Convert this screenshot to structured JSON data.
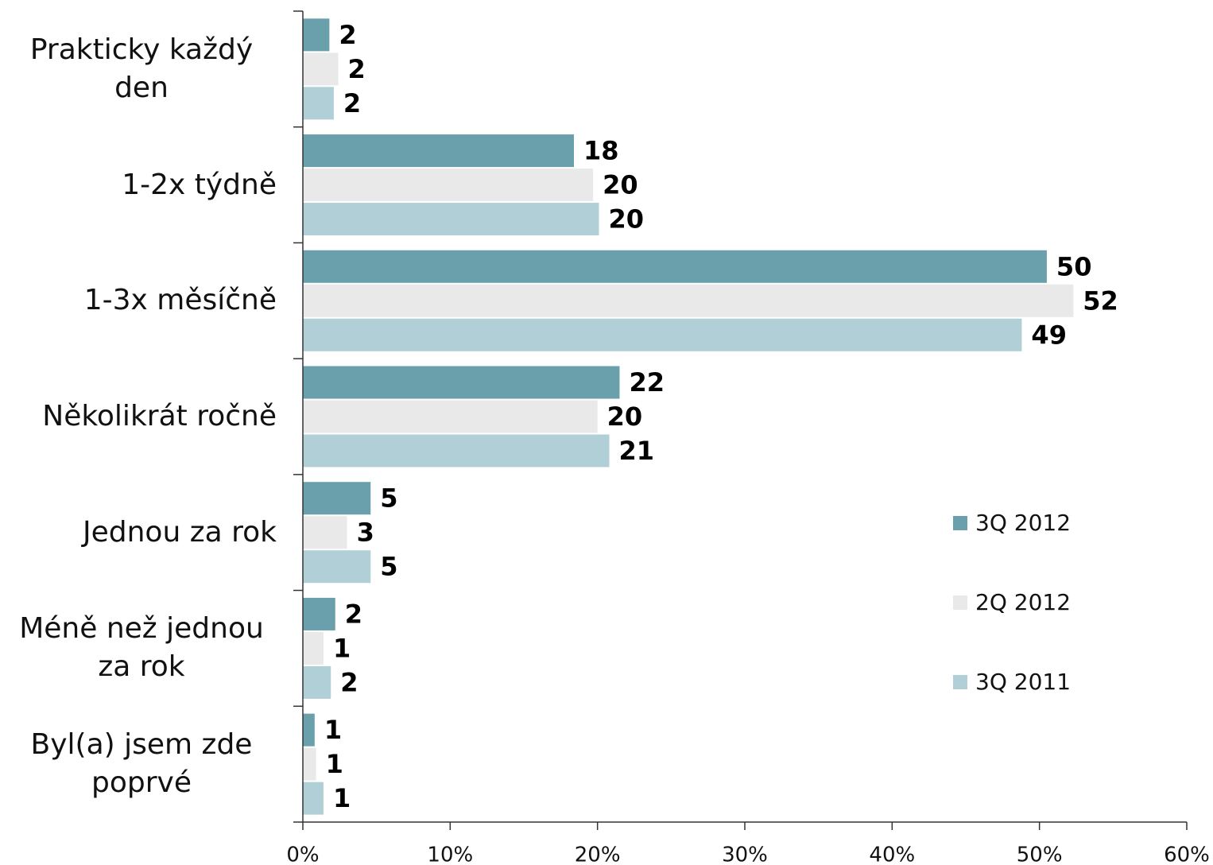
{
  "chart_data": {
    "type": "hbar",
    "categories": [
      "Prakticky každý den",
      "1-2x týdně",
      "1-3x měsíčně",
      "Několikrát ročně",
      "Jednou za rok",
      "Méně než jednou za rok",
      "Byl(a) jsem zde poprvé"
    ],
    "series": [
      {
        "name": "3Q 2012",
        "color": "#6a9fac",
        "values": [
          1.8,
          18.4,
          50.5,
          21.5,
          4.6,
          2.2,
          0.8
        ],
        "value_labels": [
          "2",
          "18",
          "50",
          "22",
          "5",
          "2",
          "1"
        ]
      },
      {
        "name": "2Q 2012",
        "color": "#e9e9e9",
        "values": [
          2.4,
          19.7,
          52.3,
          20.0,
          3.0,
          1.4,
          0.9
        ],
        "value_labels": [
          "2",
          "20",
          "52",
          "20",
          "3",
          "1",
          "1"
        ]
      },
      {
        "name": "3Q 2011",
        "color": "#b1cfd6",
        "values": [
          2.1,
          20.1,
          48.8,
          20.8,
          4.6,
          1.9,
          1.4
        ],
        "value_labels": [
          "2",
          "20",
          "49",
          "21",
          "5",
          "2",
          "1"
        ]
      }
    ],
    "xlim": [
      0,
      60
    ],
    "xticks": [
      {
        "value": 0,
        "label": "0%"
      },
      {
        "value": 10,
        "label": "10%"
      },
      {
        "value": 20,
        "label": "20%"
      },
      {
        "value": 30,
        "label": "30%"
      },
      {
        "value": 40,
        "label": "40%"
      },
      {
        "value": 50,
        "label": "50%"
      },
      {
        "value": 60,
        "label": "60%"
      }
    ],
    "legend": "right"
  }
}
